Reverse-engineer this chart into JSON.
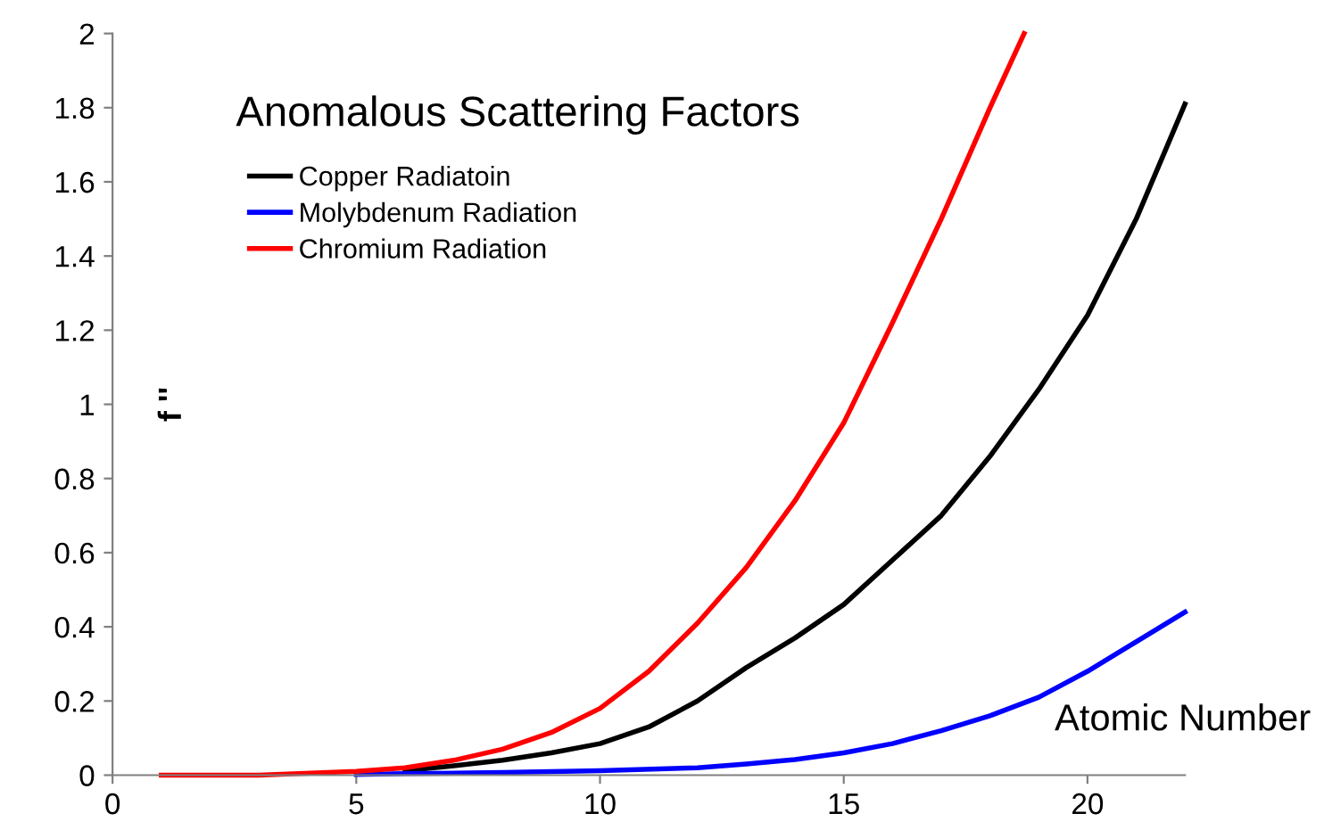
{
  "chart_data": {
    "type": "line",
    "title": "Anomalous Scattering Factors",
    "xlabel": "Atomic Number",
    "ylabel": "f ''",
    "xlim": [
      0,
      22
    ],
    "ylim": [
      0,
      2
    ],
    "xticks": [
      0,
      5,
      10,
      15,
      20
    ],
    "yticks": [
      0,
      {
        "value": 0.2,
        "label": "0.2"
      },
      {
        "value": 0.4,
        "label": "0.4"
      },
      {
        "value": 0.6,
        "label": "0.6"
      },
      {
        "value": 0.8,
        "label": "0.8"
      },
      1,
      {
        "value": 1.2,
        "label": "1.2"
      },
      {
        "value": 1.4,
        "label": "1.4"
      },
      {
        "value": 1.6,
        "label": "1.6"
      },
      {
        "value": 1.8,
        "label": "1.8"
      },
      2
    ],
    "grid": false,
    "legend": "top left",
    "marker": "none",
    "line_style": "solid",
    "series": [
      {
        "name": "Copper Radiatoin",
        "color": "#000000",
        "x": [
          6,
          7,
          8,
          9,
          10,
          11,
          12,
          13,
          14,
          15,
          16,
          17,
          18,
          19,
          20,
          21,
          22
        ],
        "values": [
          0.012,
          0.025,
          0.04,
          0.06,
          0.085,
          0.13,
          0.2,
          0.29,
          0.37,
          0.46,
          0.58,
          0.7,
          0.86,
          1.04,
          1.24,
          1.5,
          1.81
        ]
      },
      {
        "name": "Molybdenum Radiation",
        "color": "#0000ff",
        "x": [
          5,
          6,
          8,
          10,
          12,
          13,
          14,
          15,
          16,
          17,
          18,
          19,
          20,
          21,
          22
        ],
        "values": [
          0.002,
          0.004,
          0.007,
          0.012,
          0.02,
          0.03,
          0.042,
          0.06,
          0.085,
          0.12,
          0.16,
          0.21,
          0.28,
          0.36,
          0.44
        ]
      },
      {
        "name": "Chromium Radiation",
        "color": "#ff0000",
        "x": [
          1,
          3,
          5,
          6,
          7,
          8,
          9,
          10,
          11,
          12,
          13,
          14,
          15,
          16,
          17,
          18,
          18.7
        ],
        "values": [
          0,
          0,
          0.01,
          0.02,
          0.04,
          0.07,
          0.115,
          0.18,
          0.28,
          0.41,
          0.56,
          0.74,
          0.95,
          1.22,
          1.5,
          1.8,
          2.0
        ]
      }
    ]
  }
}
